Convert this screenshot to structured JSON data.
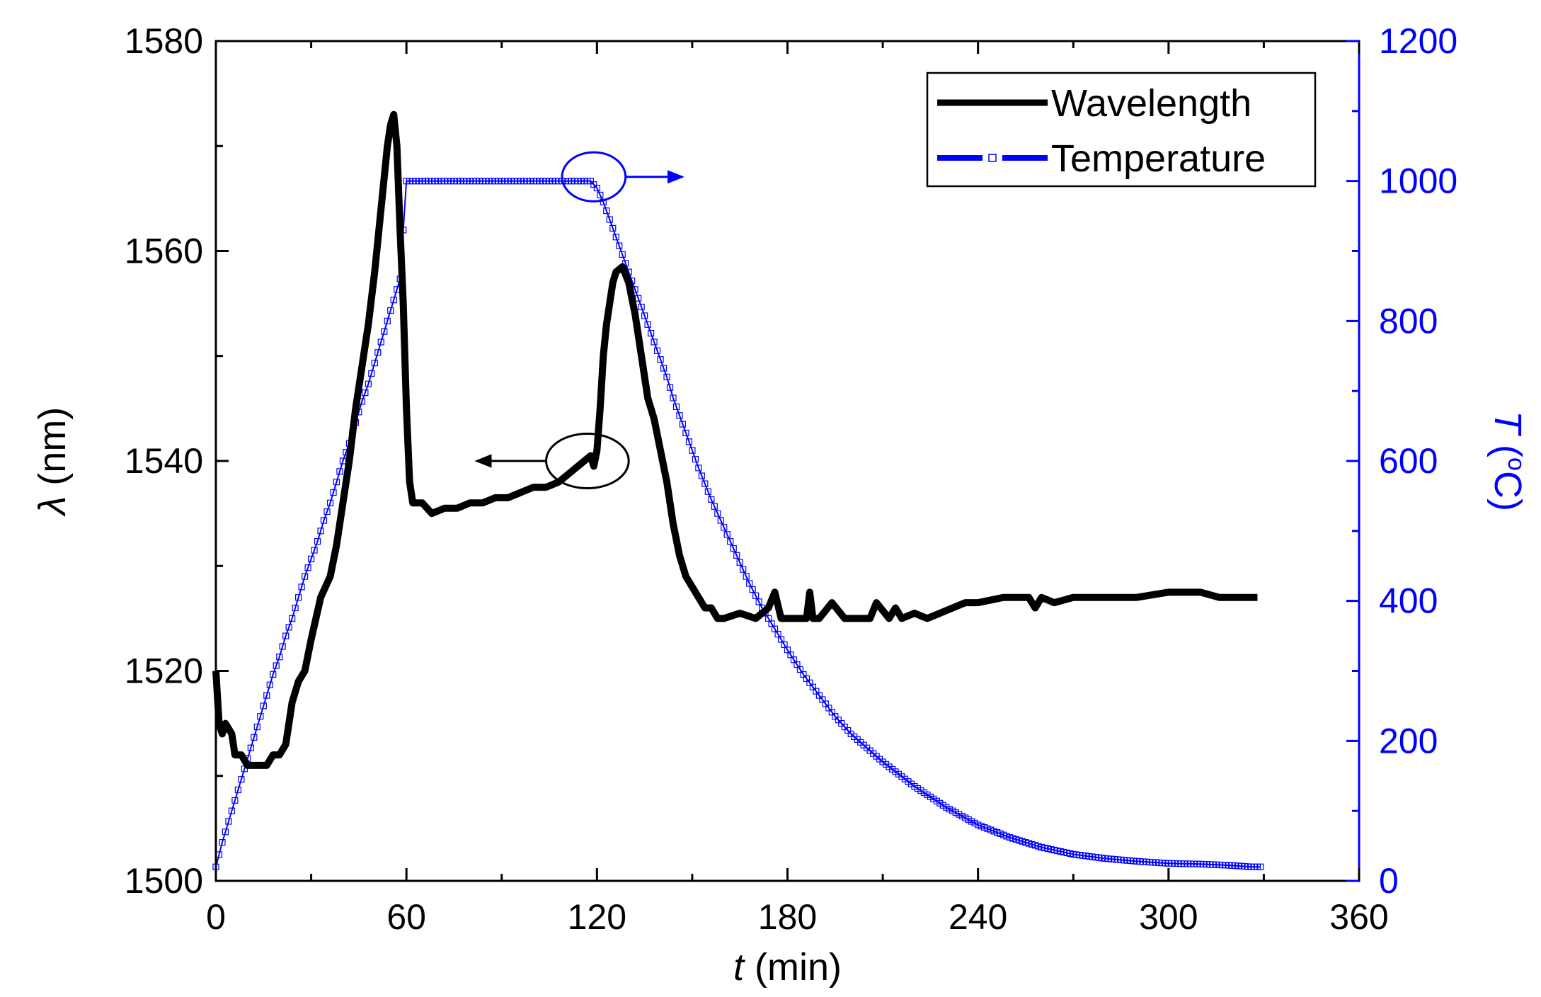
{
  "chart_data": {
    "type": "line",
    "title": "",
    "x": {
      "label_var": "t",
      "label_unit": " (min)",
      "lim": [
        0,
        360
      ],
      "ticks": [
        "0",
        "60",
        "120",
        "180",
        "240",
        "300",
        "360"
      ],
      "tick_values": [
        0,
        60,
        120,
        180,
        240,
        300,
        360
      ],
      "minor_step": 30
    },
    "y_left": {
      "label_var": "λ",
      "label_unit": " (nm)",
      "lim": [
        1500,
        1580
      ],
      "ticks": [
        "1500",
        "1520",
        "1540",
        "1560",
        "1580"
      ],
      "tick_values": [
        1500,
        1520,
        1540,
        1560,
        1580
      ],
      "minor_step": 10,
      "color": "#000000"
    },
    "y_right": {
      "label_var": "T",
      "label_unit": " (",
      "label_sup": "o",
      "label_end": "C)",
      "lim": [
        0,
        1200
      ],
      "ticks": [
        "0",
        "200",
        "400",
        "600",
        "800",
        "1000",
        "1200"
      ],
      "tick_values": [
        0,
        200,
        400,
        600,
        800,
        1000,
        1200
      ],
      "minor_step": 100,
      "color": "#0000ff"
    },
    "legend": {
      "position": "top-right",
      "entries": [
        {
          "label": "Wavelength",
          "style": "solid",
          "color": "#000000"
        },
        {
          "label": "Temperature",
          "style": "dashed-square",
          "color": "#0000ff"
        }
      ]
    },
    "series": [
      {
        "name": "Wavelength",
        "axis": "left",
        "color": "#000000",
        "x": [
          0,
          1,
          2,
          3,
          5,
          6,
          7,
          8,
          10,
          12,
          14,
          16,
          18,
          20,
          22,
          24,
          26,
          28,
          30,
          33,
          36,
          38,
          40,
          42,
          44,
          46,
          48,
          50,
          52,
          54,
          55,
          56,
          57,
          58,
          59,
          60,
          61,
          62,
          63,
          65,
          68,
          72,
          76,
          80,
          84,
          88,
          92,
          96,
          100,
          104,
          108,
          112,
          116,
          118,
          119,
          120,
          121,
          122,
          123,
          124,
          125,
          126,
          128,
          130,
          132,
          134,
          136,
          138,
          140,
          142,
          144,
          146,
          148,
          150,
          152,
          154,
          156,
          158,
          160,
          165,
          170,
          174,
          176,
          178,
          182,
          186,
          187,
          188,
          190,
          194,
          198,
          200,
          204,
          206,
          208,
          212,
          214,
          216,
          220,
          224,
          228,
          232,
          236,
          240,
          248,
          256,
          258,
          260,
          264,
          270,
          280,
          290,
          300,
          306,
          310,
          316,
          320,
          325,
          328
        ],
        "y": [
          1520,
          1515,
          1514,
          1515,
          1514,
          1512,
          1512,
          1512,
          1511,
          1511,
          1511,
          1511,
          1512,
          1512,
          1513,
          1517,
          1519,
          1520,
          1523,
          1527,
          1529,
          1532,
          1536,
          1540,
          1545,
          1549,
          1553,
          1558,
          1564,
          1570,
          1572,
          1573,
          1570,
          1562,
          1555,
          1545,
          1538,
          1536,
          1536,
          1536,
          1535,
          1535.5,
          1535.5,
          1536,
          1536,
          1536.5,
          1536.5,
          1537,
          1537.5,
          1537.5,
          1538,
          1539,
          1540,
          1540.5,
          1539.5,
          1541,
          1545,
          1550,
          1553,
          1555,
          1557,
          1558,
          1558.5,
          1557,
          1554,
          1550,
          1546,
          1544,
          1541,
          1538,
          1534,
          1531,
          1529,
          1528,
          1527,
          1526,
          1526,
          1525,
          1525,
          1525.5,
          1525,
          1526,
          1527.5,
          1525,
          1525,
          1525,
          1527.5,
          1525,
          1525,
          1526.5,
          1525,
          1525,
          1525,
          1525,
          1526.5,
          1525,
          1526,
          1525,
          1525.5,
          1525,
          1525.5,
          1526,
          1526.5,
          1526.5,
          1527,
          1527,
          1526,
          1527,
          1526.5,
          1527,
          1527,
          1527,
          1527.5,
          1527.5,
          1527.5,
          1527,
          1527,
          1527,
          1527
        ]
      },
      {
        "name": "Temperature",
        "axis": "right",
        "color": "#0000ff",
        "x": [
          0,
          2,
          4,
          6,
          8,
          10,
          12,
          14,
          16,
          18,
          20,
          22,
          24,
          26,
          28,
          30,
          32,
          34,
          36,
          38,
          40,
          42,
          44,
          46,
          48,
          50,
          52,
          54,
          56,
          58,
          60,
          80,
          100,
          118,
          120,
          122,
          124,
          126,
          128,
          130,
          132,
          134,
          136,
          138,
          140,
          142,
          144,
          146,
          148,
          150,
          152,
          156,
          160,
          164,
          168,
          172,
          176,
          180,
          185,
          190,
          195,
          200,
          210,
          220,
          230,
          240,
          250,
          260,
          270,
          280,
          290,
          300,
          310,
          320,
          326,
          329
        ],
        "y": [
          20,
          55,
          85,
          115,
          145,
          175,
          205,
          235,
          265,
          295,
          320,
          350,
          375,
          405,
          435,
          460,
          485,
          515,
          540,
          570,
          600,
          625,
          655,
          685,
          710,
          740,
          770,
          800,
          830,
          860,
          1000,
          1000,
          1000,
          1000,
          990,
          970,
          945,
          920,
          895,
          870,
          845,
          820,
          795,
          770,
          745,
          720,
          690,
          665,
          640,
          615,
          590,
          545,
          505,
          465,
          425,
          390,
          360,
          330,
          295,
          265,
          235,
          210,
          170,
          135,
          105,
          80,
          62,
          48,
          38,
          32,
          28,
          25,
          24,
          22,
          20,
          20
        ]
      }
    ],
    "annotations": [
      {
        "type": "ellipse",
        "color": "#0000ff",
        "center": [
          119,
          1006
        ],
        "radius": [
          10,
          35
        ],
        "arrow_to": [
          147,
          1006
        ],
        "axis": "right",
        "meaning": "temperature curve refers to right axis"
      },
      {
        "type": "ellipse",
        "color": "#000000",
        "center": [
          117,
          1540
        ],
        "radius": [
          13,
          2.6
        ],
        "arrow_to": [
          82,
          1540
        ],
        "axis": "left",
        "meaning": "wavelength curve refers to left axis"
      }
    ]
  }
}
